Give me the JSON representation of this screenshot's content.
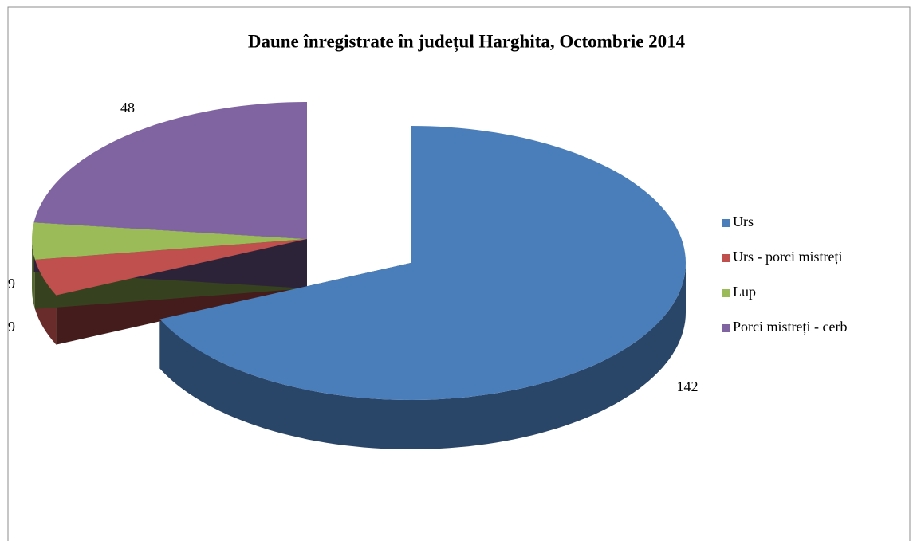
{
  "chart_data": {
    "type": "pie",
    "title": "Daune înregistrate în județul Harghita, Octombrie 2014",
    "categories": [
      "Urs",
      "Urs - porci mistreți",
      "Lup",
      "Porci mistreți  - cerb"
    ],
    "values": [
      142,
      9,
      9,
      48
    ],
    "colors": [
      "#4a7ebb",
      "#c0504d",
      "#9bbb59",
      "#8064a2"
    ],
    "legend": "right",
    "three_d": true,
    "exploded": [
      0
    ]
  }
}
